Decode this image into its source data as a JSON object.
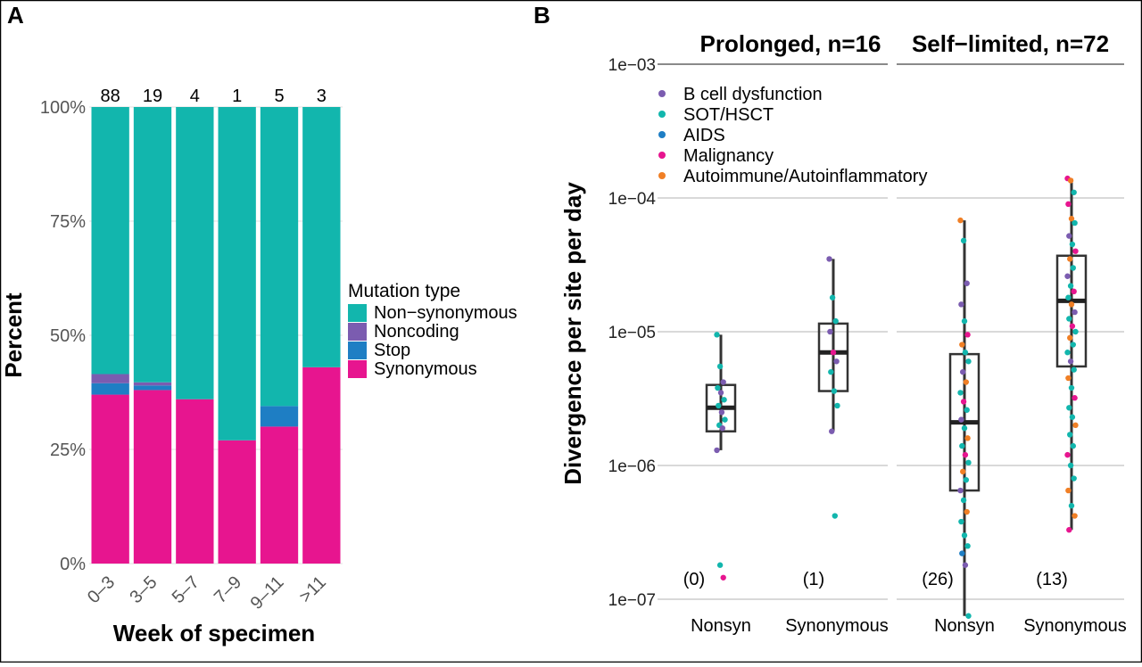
{
  "panels": {
    "a": {
      "label": "A",
      "ylabel": "Percent",
      "xlabel": "Week of specimen",
      "yticks": [
        "0%",
        "25%",
        "50%",
        "75%",
        "100%"
      ],
      "legend_title": "Mutation type"
    },
    "b": {
      "label": "B",
      "ylabel": "Divergence per site per day",
      "yticks": [
        "1e−07",
        "1e−06",
        "1e−05",
        "1e−04",
        "1e−03"
      ]
    }
  },
  "chart_data": [
    {
      "type": "bar",
      "stacked": true,
      "categories": [
        "0–3",
        "3–5",
        "5–7",
        "7–9",
        "9–11",
        ">11"
      ],
      "counts": [
        "88",
        "19",
        "4",
        "1",
        "5",
        "3"
      ],
      "xlabel": "Week of specimen",
      "ylabel": "Percent",
      "ylim": [
        0,
        100
      ],
      "series": [
        {
          "name": "Synonymous",
          "color": "#e7158f",
          "values": [
            37,
            38,
            36,
            27,
            30,
            43
          ]
        },
        {
          "name": "Stop",
          "color": "#1e7ec4",
          "values": [
            2.5,
            1,
            0,
            0,
            4.5,
            0
          ]
        },
        {
          "name": "Noncoding",
          "color": "#7b5cb0",
          "values": [
            2,
            0.7,
            0,
            0,
            0,
            0
          ]
        },
        {
          "name": "Non−synonymous",
          "color": "#12b6ad",
          "values": [
            58.5,
            60.3,
            64,
            73,
            65.5,
            57
          ]
        }
      ],
      "legend": {
        "title": "Mutation type",
        "position": "right"
      }
    },
    {
      "type": "scatter",
      "subtype": "box-with-points",
      "yscale": "log",
      "ylim": [
        1e-07,
        0.001
      ],
      "ylabel": "Divergence per site per day",
      "facets": [
        {
          "title": "Prolonged, n=16",
          "groups": [
            {
              "label": "Nonsyn",
              "excluded": "(0)",
              "box": {
                "q1": 1.8e-06,
                "median": 2.7e-06,
                "q3": 4e-06,
                "lo": 1.3e-06,
                "hi": 9.5e-06
              },
              "points": [
                [
                  9.5e-06,
                  "SOT/HSCT"
                ],
                [
                  5.5e-06,
                  "SOT/HSCT"
                ],
                [
                  4.2e-06,
                  "B cell dysfunction"
                ],
                [
                  3.8e-06,
                  "SOT/HSCT"
                ],
                [
                  3.5e-06,
                  "B cell dysfunction"
                ],
                [
                  3.1e-06,
                  "SOT/HSCT"
                ],
                [
                  2.8e-06,
                  "SOT/HSCT"
                ],
                [
                  2.5e-06,
                  "B cell dysfunction"
                ],
                [
                  2.2e-06,
                  "SOT/HSCT"
                ],
                [
                  2e-06,
                  "SOT/HSCT"
                ],
                [
                  1.9e-06,
                  "B cell dysfunction"
                ],
                [
                  1.3e-06,
                  "B cell dysfunction"
                ],
                [
                  1.8e-07,
                  "SOT/HSCT"
                ],
                [
                  1.45e-07,
                  "Malignancy"
                ]
              ]
            },
            {
              "label": "Synonymous",
              "excluded": "(1)",
              "box": {
                "q1": 3.6e-06,
                "median": 7e-06,
                "q3": 1.15e-05,
                "lo": 1.8e-06,
                "hi": 3.5e-05
              },
              "points": [
                [
                  3.5e-05,
                  "B cell dysfunction"
                ],
                [
                  1.8e-05,
                  "SOT/HSCT"
                ],
                [
                  1.2e-05,
                  "SOT/HSCT"
                ],
                [
                  1e-05,
                  "B cell dysfunction"
                ],
                [
                  7e-06,
                  "Malignancy"
                ],
                [
                  6e-06,
                  "B cell dysfunction"
                ],
                [
                  5e-06,
                  "SOT/HSCT"
                ],
                [
                  3.6e-06,
                  "SOT/HSCT"
                ],
                [
                  2.8e-06,
                  "SOT/HSCT"
                ],
                [
                  1.8e-06,
                  "B cell dysfunction"
                ],
                [
                  4.2e-07,
                  "SOT/HSCT"
                ]
              ]
            }
          ]
        },
        {
          "title": "Self−limited, n=72",
          "groups": [
            {
              "label": "Nonsyn",
              "excluded": "(26)",
              "box": {
                "q1": 6.5e-07,
                "median": 2.1e-06,
                "q3": 6.8e-06,
                "lo": 7.5e-08,
                "hi": 6.8e-05
              },
              "points": [
                [
                  6.8e-05,
                  "Autoimmune/Autoinflammatory"
                ],
                [
                  4.8e-05,
                  "SOT/HSCT"
                ],
                [
                  2.3e-05,
                  "B cell dysfunction"
                ],
                [
                  1.6e-05,
                  "B cell dysfunction"
                ],
                [
                  1.2e-05,
                  "SOT/HSCT"
                ],
                [
                  9.5e-06,
                  "Malignancy"
                ],
                [
                  8e-06,
                  "Autoimmune/Autoinflammatory"
                ],
                [
                  7e-06,
                  "SOT/HSCT"
                ],
                [
                  6e-06,
                  "SOT/HSCT"
                ],
                [
                  5e-06,
                  "B cell dysfunction"
                ],
                [
                  4.2e-06,
                  "Autoimmune/Autoinflammatory"
                ],
                [
                  3.5e-06,
                  "SOT/HSCT"
                ],
                [
                  3e-06,
                  "Malignancy"
                ],
                [
                  2.6e-06,
                  "SOT/HSCT"
                ],
                [
                  2.2e-06,
                  "B cell dysfunction"
                ],
                [
                  1.9e-06,
                  "SOT/HSCT"
                ],
                [
                  1.6e-06,
                  "Autoimmune/Autoinflammatory"
                ],
                [
                  1.4e-06,
                  "SOT/HSCT"
                ],
                [
                  1.2e-06,
                  "Malignancy"
                ],
                [
                  1.05e-06,
                  "SOT/HSCT"
                ],
                [
                  9e-07,
                  "Autoimmune/Autoinflammatory"
                ],
                [
                  7.8e-07,
                  "SOT/HSCT"
                ],
                [
                  6.5e-07,
                  "B cell dysfunction"
                ],
                [
                  5.5e-07,
                  "SOT/HSCT"
                ],
                [
                  4.5e-07,
                  "Autoimmune/Autoinflammatory"
                ],
                [
                  3.8e-07,
                  "SOT/HSCT"
                ],
                [
                  3e-07,
                  "SOT/HSCT"
                ],
                [
                  2.5e-07,
                  "SOT/HSCT"
                ],
                [
                  2.2e-07,
                  "AIDS"
                ],
                [
                  1.8e-07,
                  "B cell dysfunction"
                ],
                [
                  7.5e-08,
                  "SOT/HSCT"
                ]
              ]
            },
            {
              "label": "Synonymous",
              "excluded": "(13)",
              "box": {
                "q1": 5.5e-06,
                "median": 1.7e-05,
                "q3": 3.7e-05,
                "lo": 3.3e-07,
                "hi": 0.00014
              },
              "points": [
                [
                  0.00014,
                  "Malignancy"
                ],
                [
                  0.000135,
                  "Autoimmune/Autoinflammatory"
                ],
                [
                  0.00011,
                  "SOT/HSCT"
                ],
                [
                  9e-05,
                  "Malignancy"
                ],
                [
                  7e-05,
                  "Autoimmune/Autoinflammatory"
                ],
                [
                  6.5e-05,
                  "SOT/HSCT"
                ],
                [
                  5.2e-05,
                  "B cell dysfunction"
                ],
                [
                  4.5e-05,
                  "SOT/HSCT"
                ],
                [
                  4e-05,
                  "Malignancy"
                ],
                [
                  3.5e-05,
                  "Autoimmune/Autoinflammatory"
                ],
                [
                  3e-05,
                  "SOT/HSCT"
                ],
                [
                  2.6e-05,
                  "B cell dysfunction"
                ],
                [
                  2.2e-05,
                  "SOT/HSCT"
                ],
                [
                  2e-05,
                  "Malignancy"
                ],
                [
                  1.8e-05,
                  "SOT/HSCT"
                ],
                [
                  1.6e-05,
                  "Autoimmune/Autoinflammatory"
                ],
                [
                  1.4e-05,
                  "B cell dysfunction"
                ],
                [
                  1.25e-05,
                  "SOT/HSCT"
                ],
                [
                  1.1e-05,
                  "Malignancy"
                ],
                [
                  1e-05,
                  "SOT/HSCT"
                ],
                [
                  9e-06,
                  "Autoimmune/Autoinflammatory"
                ],
                [
                  8e-06,
                  "SOT/HSCT"
                ],
                [
                  7e-06,
                  "SOT/HSCT"
                ],
                [
                  6e-06,
                  "B cell dysfunction"
                ],
                [
                  5.2e-06,
                  "SOT/HSCT"
                ],
                [
                  4.5e-06,
                  "Autoimmune/Autoinflammatory"
                ],
                [
                  3.8e-06,
                  "SOT/HSCT"
                ],
                [
                  3.2e-06,
                  "Malignancy"
                ],
                [
                  2.7e-06,
                  "SOT/HSCT"
                ],
                [
                  2.3e-06,
                  "SOT/HSCT"
                ],
                [
                  2e-06,
                  "Autoimmune/Autoinflammatory"
                ],
                [
                  1.7e-06,
                  "SOT/HSCT"
                ],
                [
                  1.4e-06,
                  "SOT/HSCT"
                ],
                [
                  1.2e-06,
                  "Malignancy"
                ],
                [
                  1e-06,
                  "SOT/HSCT"
                ],
                [
                  8e-07,
                  "SOT/HSCT"
                ],
                [
                  6.5e-07,
                  "Autoimmune/Autoinflammatory"
                ],
                [
                  5e-07,
                  "SOT/HSCT"
                ],
                [
                  4.2e-07,
                  "Autoimmune/Autoinflammatory"
                ],
                [
                  3.3e-07,
                  "Malignancy"
                ]
              ]
            }
          ]
        }
      ],
      "legend": {
        "position": "top-left",
        "entries": [
          {
            "name": "B cell dysfunction",
            "color": "#7b5cb0"
          },
          {
            "name": "SOT/HSCT",
            "color": "#12b6ad"
          },
          {
            "name": "AIDS",
            "color": "#1e7ec4"
          },
          {
            "name": "Malignancy",
            "color": "#e7158f"
          },
          {
            "name": "Autoimmune/Autoinflammatory",
            "color": "#f07f25"
          }
        ]
      }
    }
  ]
}
